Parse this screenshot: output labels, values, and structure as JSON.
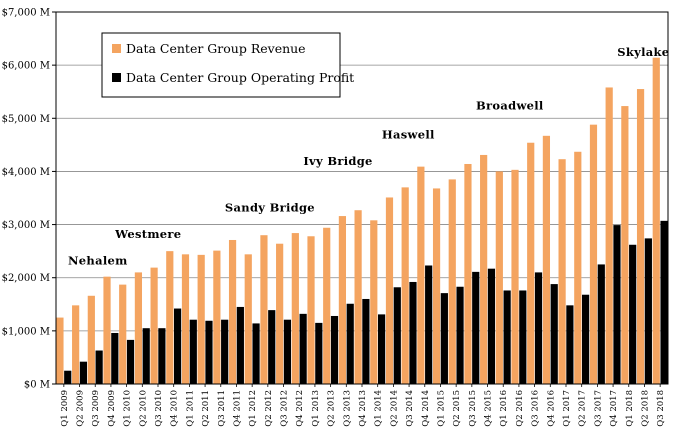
{
  "chart_data": {
    "type": "bar",
    "categories": [
      "Q1 2009",
      "Q2 2009",
      "Q3 2009",
      "Q4 2009",
      "Q1 2010",
      "Q2 2010",
      "Q3 2010",
      "Q4 2010",
      "Q1 2011",
      "Q2 2011",
      "Q3 2011",
      "Q4 2011",
      "Q1 2012",
      "Q2 2012",
      "Q3 2012",
      "Q4 2012",
      "Q1 2013",
      "Q2 2013",
      "Q3 2013",
      "Q4 2013",
      "Q1 2014",
      "Q2 2014",
      "Q3 2014",
      "Q4 2014",
      "Q1 2015",
      "Q2 2015",
      "Q3 2015",
      "Q4 2015",
      "Q1 2016",
      "Q2 2016",
      "Q3 2016",
      "Q4 2016",
      "Q1 2017",
      "Q2 2017",
      "Q3 2017",
      "Q4 2017",
      "Q1 2018",
      "Q2 2018",
      "Q3 2018"
    ],
    "series": [
      {
        "name": "Data Center Group Revenue",
        "color": "#F4A460",
        "values": [
          1250,
          1480,
          1660,
          2020,
          1870,
          2100,
          2190,
          2500,
          2440,
          2430,
          2510,
          2710,
          2440,
          2800,
          2640,
          2840,
          2780,
          2940,
          3160,
          3270,
          3080,
          3510,
          3700,
          4090,
          3680,
          3850,
          4140,
          4310,
          4000,
          4030,
          4540,
          4670,
          4230,
          4370,
          4880,
          5580,
          5230,
          5550,
          6140
        ]
      },
      {
        "name": "Data Center Group Operating Profit",
        "color": "#000000",
        "values": [
          250,
          420,
          630,
          960,
          830,
          1050,
          1050,
          1420,
          1210,
          1190,
          1210,
          1450,
          1140,
          1390,
          1210,
          1320,
          1150,
          1280,
          1510,
          1600,
          1310,
          1820,
          1920,
          2230,
          1710,
          1830,
          2110,
          2170,
          1760,
          1760,
          2100,
          1880,
          1480,
          1680,
          2250,
          2990,
          2620,
          2740,
          3070
        ]
      }
    ],
    "yticks": [
      "$0 M",
      "$1,000 M",
      "$2,000 M",
      "$3,000 M",
      "$4,000 M",
      "$5,000 M",
      "$6,000 M",
      "$7,000 M"
    ],
    "ylim": [
      0,
      7000
    ],
    "grid": true,
    "legend_position": "top-left",
    "annotations": [
      {
        "text": "Nehalem",
        "category_index": 0,
        "value": 2250
      },
      {
        "text": "Westmere",
        "category_index": 3,
        "value": 2750
      },
      {
        "text": "Sandy Bridge",
        "category_index": 10,
        "value": 3250
      },
      {
        "text": "Ivy Bridge",
        "category_index": 15,
        "value": 4120
      },
      {
        "text": "Haswell",
        "category_index": 20,
        "value": 4620
      },
      {
        "text": "Broadwell",
        "category_index": 26,
        "value": 5170
      },
      {
        "text": "Skylake",
        "category_index": 35,
        "value": 6170
      }
    ]
  }
}
